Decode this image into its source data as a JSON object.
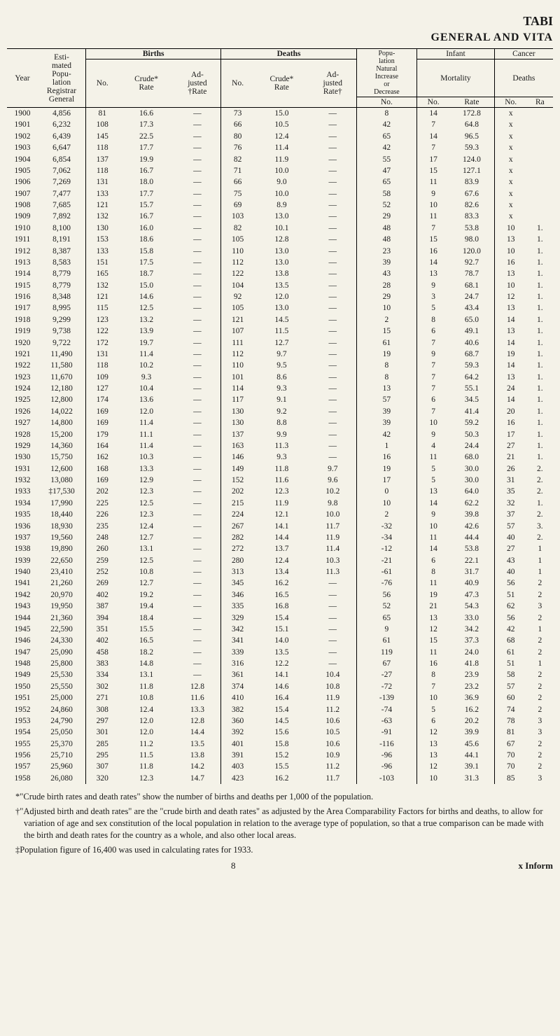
{
  "header": {
    "top_right": "TABI",
    "sub_right": "GENERAL AND VITA"
  },
  "thead": {
    "year": "Year",
    "pop": "Esti-\nmated\nPopu-\nlation\nRegistrar\nGeneral",
    "births": "Births",
    "births_no": "No.",
    "births_crude": "Crude*\nRate",
    "births_adj": "Ad-\njusted\n†Rate",
    "deaths": "Deaths",
    "deaths_no": "No.",
    "deaths_crude": "Crude*\nRate",
    "deaths_adj": "Ad-\njusted\nRate†",
    "natinc": "Popu-\nlation\nNatural\nIncrease\nor\nDecrease",
    "natinc_no": "No.",
    "infant": "Infant",
    "mortality": "Mortality",
    "infant_no": "No.",
    "infant_rate": "Rate",
    "cancer": "Cancer",
    "deaths_lbl": "Deaths",
    "cancer_no": "No.",
    "cancer_ra": "Ra"
  },
  "rows": [
    [
      "1900",
      "4,856",
      "81",
      "16.6",
      "—",
      "73",
      "15.0",
      "—",
      "8",
      "14",
      "172.8",
      "x",
      ""
    ],
    [
      "1901",
      "6,232",
      "108",
      "17.3",
      "—",
      "66",
      "10.5",
      "—",
      "42",
      "7",
      "64.8",
      "x",
      ""
    ],
    [
      "1902",
      "6,439",
      "145",
      "22.5",
      "—",
      "80",
      "12.4",
      "—",
      "65",
      "14",
      "96.5",
      "x",
      ""
    ],
    [
      "1903",
      "6,647",
      "118",
      "17.7",
      "—",
      "76",
      "11.4",
      "—",
      "42",
      "7",
      "59.3",
      "x",
      ""
    ],
    [
      "1904",
      "6,854",
      "137",
      "19.9",
      "—",
      "82",
      "11.9",
      "—",
      "55",
      "17",
      "124.0",
      "x",
      ""
    ],
    [
      "1905",
      "7,062",
      "118",
      "16.7",
      "—",
      "71",
      "10.0",
      "—",
      "47",
      "15",
      "127.1",
      "x",
      ""
    ],
    [
      "1906",
      "7,269",
      "131",
      "18.0",
      "—",
      "66",
      "9.0",
      "—",
      "65",
      "11",
      "83.9",
      "x",
      ""
    ],
    [
      "1907",
      "7,477",
      "133",
      "17.7",
      "—",
      "75",
      "10.0",
      "—",
      "58",
      "9",
      "67.6",
      "x",
      ""
    ],
    [
      "1908",
      "7,685",
      "121",
      "15.7",
      "—",
      "69",
      "8.9",
      "—",
      "52",
      "10",
      "82.6",
      "x",
      ""
    ],
    [
      "1909",
      "7,892",
      "132",
      "16.7",
      "—",
      "103",
      "13.0",
      "—",
      "29",
      "11",
      "83.3",
      "x",
      ""
    ],
    [
      "1910",
      "8,100",
      "130",
      "16.0",
      "—",
      "82",
      "10.1",
      "—",
      "48",
      "7",
      "53.8",
      "10",
      "1."
    ],
    [
      "1911",
      "8,191",
      "153",
      "18.6",
      "—",
      "105",
      "12.8",
      "—",
      "48",
      "15",
      "98.0",
      "13",
      "1."
    ],
    [
      "1912",
      "8,387",
      "133",
      "15.8",
      "—",
      "110",
      "13.0",
      "—",
      "23",
      "16",
      "120.0",
      "10",
      "1."
    ],
    [
      "1913",
      "8,583",
      "151",
      "17.5",
      "—",
      "112",
      "13.0",
      "—",
      "39",
      "14",
      "92.7",
      "16",
      "1."
    ],
    [
      "1914",
      "8,779",
      "165",
      "18.7",
      "—",
      "122",
      "13.8",
      "—",
      "43",
      "13",
      "78.7",
      "13",
      "1."
    ],
    [
      "1915",
      "8,779",
      "132",
      "15.0",
      "—",
      "104",
      "13.5",
      "—",
      "28",
      "9",
      "68.1",
      "10",
      "1."
    ],
    [
      "1916",
      "8,348",
      "121",
      "14.6",
      "—",
      "92",
      "12.0",
      "—",
      "29",
      "3",
      "24.7",
      "12",
      "1."
    ],
    [
      "1917",
      "8,995",
      "115",
      "12.5",
      "—",
      "105",
      "13.0",
      "—",
      "10",
      "5",
      "43.4",
      "13",
      "1."
    ],
    [
      "1918",
      "9,299",
      "123",
      "13.2",
      "—",
      "121",
      "14.5",
      "—",
      "2",
      "8",
      "65.0",
      "14",
      "1."
    ],
    [
      "1919",
      "9,738",
      "122",
      "13.9",
      "—",
      "107",
      "11.5",
      "—",
      "15",
      "6",
      "49.1",
      "13",
      "1."
    ],
    [
      "1920",
      "9,722",
      "172",
      "19.7",
      "—",
      "111",
      "12.7",
      "—",
      "61",
      "7",
      "40.6",
      "14",
      "1."
    ],
    [
      "1921",
      "11,490",
      "131",
      "11.4",
      "—",
      "112",
      "9.7",
      "—",
      "19",
      "9",
      "68.7",
      "19",
      "1."
    ],
    [
      "1922",
      "11,580",
      "118",
      "10.2",
      "—",
      "110",
      "9.5",
      "—",
      "8",
      "7",
      "59.3",
      "14",
      "1."
    ],
    [
      "1923",
      "11,670",
      "109",
      "9.3",
      "—",
      "101",
      "8.6",
      "—",
      "8",
      "7",
      "64.2",
      "13",
      "1."
    ],
    [
      "1924",
      "12,180",
      "127",
      "10.4",
      "—",
      "114",
      "9.3",
      "—",
      "13",
      "7",
      "55.1",
      "24",
      "1."
    ],
    [
      "1925",
      "12,800",
      "174",
      "13.6",
      "—",
      "117",
      "9.1",
      "—",
      "57",
      "6",
      "34.5",
      "14",
      "1."
    ],
    [
      "1926",
      "14,022",
      "169",
      "12.0",
      "—",
      "130",
      "9.2",
      "—",
      "39",
      "7",
      "41.4",
      "20",
      "1."
    ],
    [
      "1927",
      "14,800",
      "169",
      "11.4",
      "—",
      "130",
      "8.8",
      "—",
      "39",
      "10",
      "59.2",
      "16",
      "1."
    ],
    [
      "1928",
      "15,200",
      "179",
      "11.1",
      "—",
      "137",
      "9.9",
      "—",
      "42",
      "9",
      "50.3",
      "17",
      "1."
    ],
    [
      "1929",
      "14,360",
      "164",
      "11.4",
      "—",
      "163",
      "11.3",
      "—",
      "1",
      "4",
      "24.4",
      "27",
      "1."
    ],
    [
      "1930",
      "15,750",
      "162",
      "10.3",
      "—",
      "146",
      "9.3",
      "—",
      "16",
      "11",
      "68.0",
      "21",
      "1."
    ],
    [
      "1931",
      "12,600",
      "168",
      "13.3",
      "—",
      "149",
      "11.8",
      "9.7",
      "19",
      "5",
      "30.0",
      "26",
      "2."
    ],
    [
      "1932",
      "13,080",
      "169",
      "12.9",
      "—",
      "152",
      "11.6",
      "9.6",
      "17",
      "5",
      "30.0",
      "31",
      "2."
    ],
    [
      "1933",
      "‡17,530",
      "202",
      "12.3",
      "—",
      "202",
      "12.3",
      "10.2",
      "0",
      "13",
      "64.0",
      "35",
      "2."
    ],
    [
      "1934",
      "17,990",
      "225",
      "12.5",
      "—",
      "215",
      "11.9",
      "9.8",
      "10",
      "14",
      "62.2",
      "32",
      "1."
    ],
    [
      "1935",
      "18,440",
      "226",
      "12.3",
      "—",
      "224",
      "12.1",
      "10.0",
      "2",
      "9",
      "39.8",
      "37",
      "2."
    ],
    [
      "1936",
      "18,930",
      "235",
      "12.4",
      "—",
      "267",
      "14.1",
      "11.7",
      "-32",
      "10",
      "42.6",
      "57",
      "3."
    ],
    [
      "1937",
      "19,560",
      "248",
      "12.7",
      "—",
      "282",
      "14.4",
      "11.9",
      "-34",
      "11",
      "44.4",
      "40",
      "2."
    ],
    [
      "1938",
      "19,890",
      "260",
      "13.1",
      "—",
      "272",
      "13.7",
      "11.4",
      "-12",
      "14",
      "53.8",
      "27",
      "1"
    ],
    [
      "1939",
      "22,650",
      "259",
      "12.5",
      "—",
      "280",
      "12.4",
      "10.3",
      "-21",
      "6",
      "22.1",
      "43",
      "1"
    ],
    [
      "1940",
      "23,410",
      "252",
      "10.8",
      "—",
      "313",
      "13.4",
      "11.3",
      "-61",
      "8",
      "31.7",
      "40",
      "1"
    ],
    [
      "1941",
      "21,260",
      "269",
      "12.7",
      "—",
      "345",
      "16.2",
      "—",
      "-76",
      "11",
      "40.9",
      "56",
      "2"
    ],
    [
      "1942",
      "20,970",
      "402",
      "19.2",
      "—",
      "346",
      "16.5",
      "—",
      "56",
      "19",
      "47.3",
      "51",
      "2"
    ],
    [
      "1943",
      "19,950",
      "387",
      "19.4",
      "—",
      "335",
      "16.8",
      "—",
      "52",
      "21",
      "54.3",
      "62",
      "3"
    ],
    [
      "1944",
      "21,360",
      "394",
      "18.4",
      "—",
      "329",
      "15.4",
      "—",
      "65",
      "13",
      "33.0",
      "56",
      "2"
    ],
    [
      "1945",
      "22,590",
      "351",
      "15.5",
      "—",
      "342",
      "15.1",
      "—",
      "9",
      "12",
      "34.2",
      "42",
      "1"
    ],
    [
      "1946",
      "24,330",
      "402",
      "16.5",
      "—",
      "341",
      "14.0",
      "—",
      "61",
      "15",
      "37.3",
      "68",
      "2"
    ],
    [
      "1947",
      "25,090",
      "458",
      "18.2",
      "—",
      "339",
      "13.5",
      "—",
      "119",
      "11",
      "24.0",
      "61",
      "2"
    ],
    [
      "1948",
      "25,800",
      "383",
      "14.8",
      "—",
      "316",
      "12.2",
      "—",
      "67",
      "16",
      "41.8",
      "51",
      "1"
    ],
    [
      "1949",
      "25,530",
      "334",
      "13.1",
      "—",
      "361",
      "14.1",
      "10.4",
      "-27",
      "8",
      "23.9",
      "58",
      "2"
    ],
    [
      "1950",
      "25,550",
      "302",
      "11.8",
      "12.8",
      "374",
      "14.6",
      "10.8",
      "-72",
      "7",
      "23.2",
      "57",
      "2"
    ],
    [
      "1951",
      "25,000",
      "271",
      "10.8",
      "11.6",
      "410",
      "16.4",
      "11.9",
      "-139",
      "10",
      "36.9",
      "60",
      "2"
    ],
    [
      "1952",
      "24,860",
      "308",
      "12.4",
      "13.3",
      "382",
      "15.4",
      "11.2",
      "-74",
      "5",
      "16.2",
      "74",
      "2"
    ],
    [
      "1953",
      "24,790",
      "297",
      "12.0",
      "12.8",
      "360",
      "14.5",
      "10.6",
      "-63",
      "6",
      "20.2",
      "78",
      "3"
    ],
    [
      "1954",
      "25,050",
      "301",
      "12.0",
      "14.4",
      "392",
      "15.6",
      "10.5",
      "-91",
      "12",
      "39.9",
      "81",
      "3"
    ],
    [
      "1955",
      "25,370",
      "285",
      "11.2",
      "13.5",
      "401",
      "15.8",
      "10.6",
      "-116",
      "13",
      "45.6",
      "67",
      "2"
    ],
    [
      "1956",
      "25,710",
      "295",
      "11.5",
      "13.8",
      "391",
      "15.2",
      "10.9",
      "-96",
      "13",
      "44.1",
      "70",
      "2"
    ],
    [
      "1957",
      "25,960",
      "307",
      "11.8",
      "14.2",
      "403",
      "15.5",
      "11.2",
      "-96",
      "12",
      "39.1",
      "70",
      "2"
    ],
    [
      "1958",
      "26,080",
      "320",
      "12.3",
      "14.7",
      "423",
      "16.2",
      "11.7",
      "-103",
      "10",
      "31.3",
      "85",
      "3"
    ]
  ],
  "footnotes": {
    "star": "*\"Crude birth rates and death rates\" show the number of births and deaths per 1,000 of the population.",
    "dagger": "†\"Adjusted birth and death rates\" are the \"crude birth and death rates\" as adjusted by the Area Comparability Factors for births and deaths, to allow for variation of age and sex constitution of the local population in relation to the average type of population, so that a true comparison can be made with the birth and death rates for the country as a whole, and also other local areas.",
    "ddagger": "‡Population figure of 16,400 was used in calculating rates for 1933."
  },
  "foot": {
    "page": "8",
    "right": "x Inform"
  }
}
